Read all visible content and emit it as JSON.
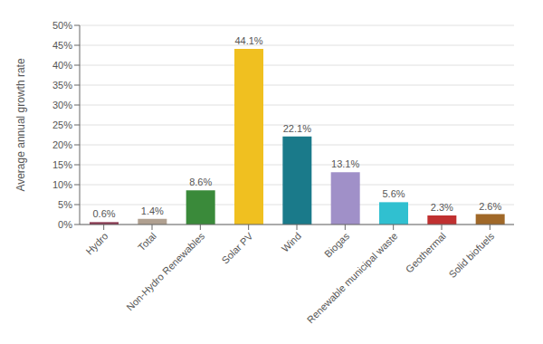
{
  "chart_data": {
    "type": "bar",
    "categories": [
      "Hydro",
      "Total",
      "Non-Hydro Renewables",
      "Solar PV",
      "Wind",
      "Biogas",
      "Renewable municipal waste",
      "Geothermal",
      "Solid biofuels"
    ],
    "values": [
      0.6,
      1.4,
      8.6,
      44.1,
      22.1,
      13.1,
      5.6,
      2.3,
      2.6
    ],
    "value_labels": [
      "0.6%",
      "1.4%",
      "8.6%",
      "44.1%",
      "22.1%",
      "13.1%",
      "5.6%",
      "2.3%",
      "2.6%"
    ],
    "colors": [
      "#8B3A52",
      "#B0A090",
      "#3A8A3A",
      "#F0C020",
      "#1A7A8A",
      "#A090C8",
      "#30C0D0",
      "#C03030",
      "#A06828"
    ],
    "ylabel": "Average annual growth rate",
    "ylim": [
      0,
      50
    ],
    "yticks": [
      {
        "value": 0,
        "label": "0%"
      },
      {
        "value": 5,
        "label": "5%"
      },
      {
        "value": 10,
        "label": "10%"
      },
      {
        "value": 15,
        "label": "15%"
      },
      {
        "value": 20,
        "label": "20%"
      },
      {
        "value": 25,
        "label": "25%"
      },
      {
        "value": 30,
        "label": "30%"
      },
      {
        "value": 35,
        "label": "35%"
      },
      {
        "value": 40,
        "label": "40%"
      },
      {
        "value": 45,
        "label": "45%"
      },
      {
        "value": 50,
        "label": "50%"
      }
    ],
    "grid": true,
    "data_labels": true
  }
}
